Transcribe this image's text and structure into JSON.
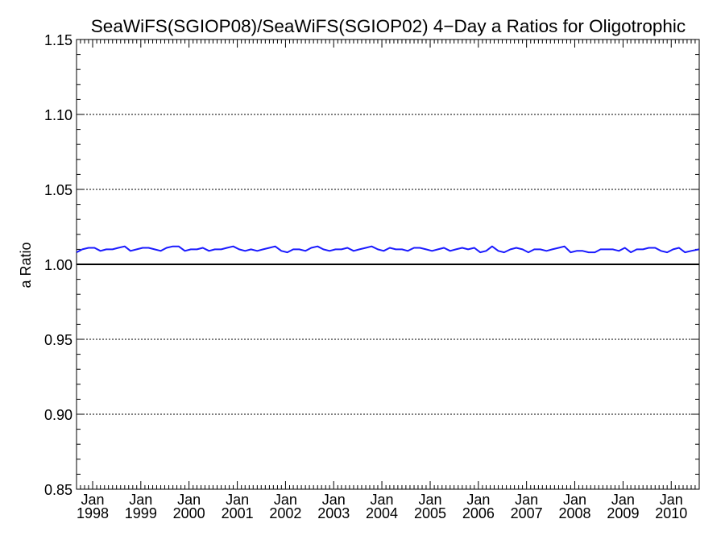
{
  "chart_data": {
    "type": "line",
    "title": "SeaWiFS(SGIOP08)/SeaWiFS(SGIOP02) 4−Day a Ratios for Oligotrophic",
    "ylabel": "a Ratio",
    "xlabel": "",
    "ylim": [
      0.85,
      1.15
    ],
    "y_ticks": [
      "0.85",
      "0.90",
      "0.95",
      "1.00",
      "1.05",
      "1.10",
      "1.15"
    ],
    "x_tick_month": "Jan",
    "x_tick_years": [
      "1998",
      "1999",
      "2000",
      "2001",
      "2002",
      "2003",
      "2004",
      "2005",
      "2006",
      "2007",
      "2008",
      "2009",
      "2010"
    ],
    "xlim": [
      "1997-09-01",
      "2010-08-01"
    ],
    "reference_line": 1.0,
    "grid": "dotted horizontal at labeled ticks",
    "line_color": "#1a1aff",
    "series": [
      {
        "x": [
          "1997-09-01",
          "1997-10-15",
          "1997-12-01",
          "1998-01-15",
          "1998-03-01",
          "1998-04-15",
          "1998-06-01",
          "1998-07-15",
          "1998-09-01",
          "1998-10-15",
          "1998-12-01",
          "1999-01-15",
          "1999-03-01",
          "1999-04-15",
          "1999-06-01",
          "1999-07-15",
          "1999-09-01",
          "1999-10-15",
          "1999-12-01",
          "2000-01-15",
          "2000-03-01",
          "2000-04-15",
          "2000-06-01",
          "2000-07-15",
          "2000-09-01",
          "2000-10-15",
          "2000-12-01",
          "2001-01-15",
          "2001-03-01",
          "2001-04-15",
          "2001-06-01",
          "2001-07-15",
          "2001-09-01",
          "2001-10-15",
          "2001-12-01",
          "2002-01-15",
          "2002-03-01",
          "2002-04-15",
          "2002-06-01",
          "2002-07-15",
          "2002-09-01",
          "2002-10-15",
          "2002-12-01",
          "2003-01-15",
          "2003-03-01",
          "2003-04-15",
          "2003-06-01",
          "2003-07-15",
          "2003-09-01",
          "2003-10-15",
          "2003-12-01",
          "2004-01-15",
          "2004-03-01",
          "2004-04-15",
          "2004-06-01",
          "2004-07-15",
          "2004-09-01",
          "2004-10-15",
          "2004-12-01",
          "2005-01-15",
          "2005-03-01",
          "2005-04-15",
          "2005-06-01",
          "2005-07-15",
          "2005-09-01",
          "2005-10-15",
          "2005-12-01",
          "2006-01-15",
          "2006-03-01",
          "2006-04-15",
          "2006-06-01",
          "2006-07-15",
          "2006-09-01",
          "2006-10-15",
          "2006-12-01",
          "2007-01-15",
          "2007-03-01",
          "2007-04-15",
          "2007-06-01",
          "2007-07-15",
          "2007-09-01",
          "2007-10-15",
          "2007-12-01",
          "2008-01-15",
          "2008-03-01",
          "2008-04-15",
          "2008-06-01",
          "2008-07-15",
          "2008-09-01",
          "2008-10-15",
          "2008-12-01",
          "2009-01-15",
          "2009-03-01",
          "2009-04-15",
          "2009-06-01",
          "2009-07-15",
          "2009-09-01",
          "2009-10-15",
          "2009-12-01",
          "2010-01-15",
          "2010-03-01",
          "2010-04-15",
          "2010-06-01",
          "2010-07-31"
        ],
        "values": [
          1.008,
          1.01,
          1.011,
          1.011,
          1.009,
          1.01,
          1.01,
          1.011,
          1.012,
          1.009,
          1.01,
          1.011,
          1.011,
          1.01,
          1.009,
          1.011,
          1.012,
          1.012,
          1.009,
          1.01,
          1.01,
          1.011,
          1.009,
          1.01,
          1.01,
          1.011,
          1.012,
          1.01,
          1.009,
          1.01,
          1.009,
          1.01,
          1.011,
          1.012,
          1.009,
          1.008,
          1.01,
          1.01,
          1.009,
          1.011,
          1.012,
          1.01,
          1.009,
          1.01,
          1.01,
          1.011,
          1.009,
          1.01,
          1.011,
          1.012,
          1.01,
          1.009,
          1.011,
          1.01,
          1.01,
          1.009,
          1.011,
          1.011,
          1.01,
          1.009,
          1.01,
          1.011,
          1.009,
          1.01,
          1.011,
          1.01,
          1.011,
          1.008,
          1.009,
          1.012,
          1.009,
          1.008,
          1.01,
          1.011,
          1.01,
          1.008,
          1.01,
          1.01,
          1.009,
          1.01,
          1.011,
          1.012,
          1.008,
          1.009,
          1.009,
          1.008,
          1.008,
          1.01,
          1.01,
          1.01,
          1.009,
          1.011,
          1.008,
          1.01,
          1.01,
          1.011,
          1.011,
          1.009,
          1.008,
          1.01,
          1.011,
          1.008,
          1.009,
          1.01
        ]
      }
    ]
  }
}
